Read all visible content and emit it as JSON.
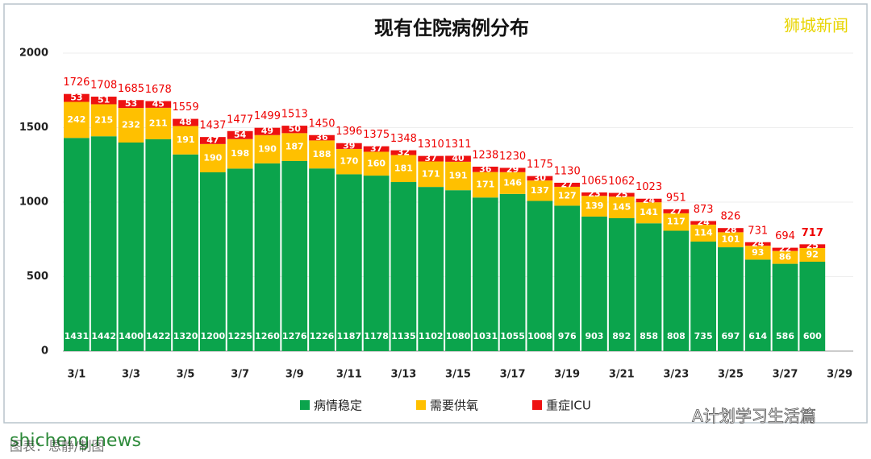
{
  "chart_data": {
    "type": "stacked_bar",
    "title": "现有住院病例分布",
    "categories": [
      "3/1",
      null,
      "3/3",
      null,
      "3/5",
      null,
      "3/7",
      null,
      "3/9",
      null,
      "3/11",
      null,
      "3/13",
      null,
      "3/15",
      null,
      "3/17",
      null,
      "3/19",
      null,
      "3/21",
      null,
      "3/23",
      null,
      "3/25",
      null,
      "3/27",
      null,
      "3/29"
    ],
    "series": [
      {
        "name": "病情稳定",
        "color": "#0ba44c",
        "values": [
          1431,
          1442,
          1400,
          1422,
          1320,
          1200,
          1225,
          1260,
          1276,
          1226,
          1187,
          1178,
          1135,
          1102,
          1080,
          1031,
          1055,
          1008,
          976,
          903,
          892,
          858,
          808,
          735,
          697,
          614,
          586,
          600,
          null
        ]
      },
      {
        "name": "需要供氧",
        "color": "#ffc000",
        "values": [
          242,
          215,
          232,
          211,
          191,
          190,
          198,
          190,
          187,
          188,
          170,
          160,
          181,
          171,
          191,
          171,
          146,
          137,
          127,
          139,
          145,
          141,
          117,
          114,
          101,
          93,
          86,
          92,
          null
        ]
      },
      {
        "name": "重症ICU",
        "color": "#ee1111",
        "values": [
          53,
          51,
          53,
          45,
          48,
          47,
          54,
          49,
          50,
          36,
          39,
          37,
          32,
          37,
          40,
          36,
          29,
          30,
          27,
          23,
          25,
          24,
          27,
          24,
          28,
          24,
          22,
          25,
          null
        ]
      }
    ],
    "totals": [
      1726,
      1708,
      1685,
      1678,
      1559,
      1437,
      1477,
      1499,
      1513,
      1450,
      1396,
      1375,
      1348,
      1310,
      1311,
      1238,
      1230,
      1175,
      1130,
      1065,
      1062,
      1023,
      951,
      873,
      826,
      731,
      694,
      717,
      null
    ],
    "ylim": [
      0,
      2000
    ],
    "yticks": [
      0,
      500,
      1000,
      1500,
      2000
    ],
    "grid": true
  },
  "watermark": "狮城新闻",
  "wechat": "A计划学习生活篇",
  "site": "shicheng.news",
  "footer": "图表：恩静/制图"
}
